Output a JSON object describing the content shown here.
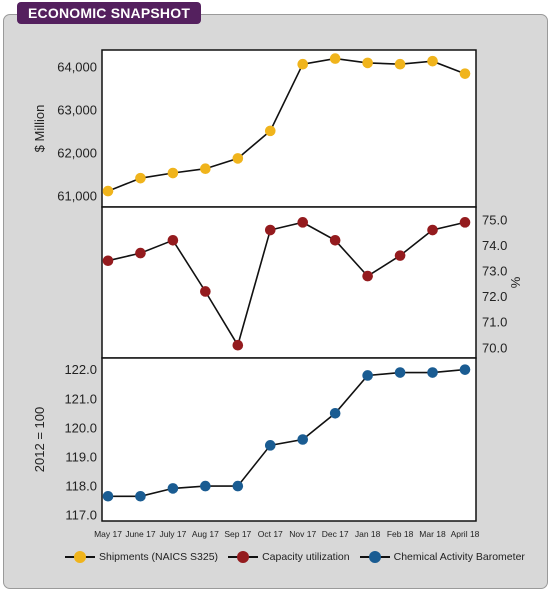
{
  "header": {
    "title": "ECONOMIC SNAPSHOT"
  },
  "chart_data": {
    "type": "line",
    "x": [
      "May 17",
      "June 17",
      "July 17",
      "Aug 17",
      "Sep 17",
      "Oct 17",
      "Nov 17",
      "Dec 17",
      "Jan 18",
      "Feb 18",
      "Mar 18",
      "April 18"
    ],
    "panels": [
      {
        "series_name": "Shipments (NAICS S325)",
        "ylabel": "$ Million",
        "axis_side": "left",
        "ylim": [
          60750,
          64400
        ],
        "ticks": [
          61000,
          62000,
          63000,
          64000
        ],
        "tick_labels": [
          "61,000",
          "62,000",
          "63,000",
          "64,000"
        ],
        "color": "#f0b41c",
        "values": [
          61120,
          61420,
          61540,
          61640,
          61880,
          62520,
          64070,
          64200,
          64100,
          64070,
          64140,
          63850
        ]
      },
      {
        "series_name": "Capacity utilization",
        "ylabel": "%",
        "axis_side": "right",
        "ylim": [
          69.6,
          75.5
        ],
        "ticks": [
          70.0,
          71.0,
          72.0,
          73.0,
          74.0,
          75.0
        ],
        "tick_labels": [
          "70.0",
          "71.0",
          "72.0",
          "73.0",
          "74.0",
          "75.0"
        ],
        "color": "#941b1e",
        "values": [
          73.4,
          73.7,
          74.2,
          72.2,
          70.1,
          74.6,
          74.9,
          74.2,
          72.8,
          73.6,
          74.6,
          74.9
        ]
      },
      {
        "series_name": "Chemical Activity Barometer",
        "ylabel": "2012 = 100",
        "axis_side": "left",
        "ylim": [
          116.8,
          122.4
        ],
        "ticks": [
          117.0,
          118.0,
          119.0,
          120.0,
          121.0,
          122.0
        ],
        "tick_labels": [
          "117.0",
          "118.0",
          "119.0",
          "120.0",
          "121.0",
          "122.0"
        ],
        "color": "#1a5c92",
        "values": [
          117.65,
          117.65,
          117.92,
          118.0,
          118.0,
          119.4,
          119.6,
          120.5,
          121.8,
          121.9,
          121.9,
          122.0
        ]
      }
    ],
    "legend_position": "bottom"
  }
}
